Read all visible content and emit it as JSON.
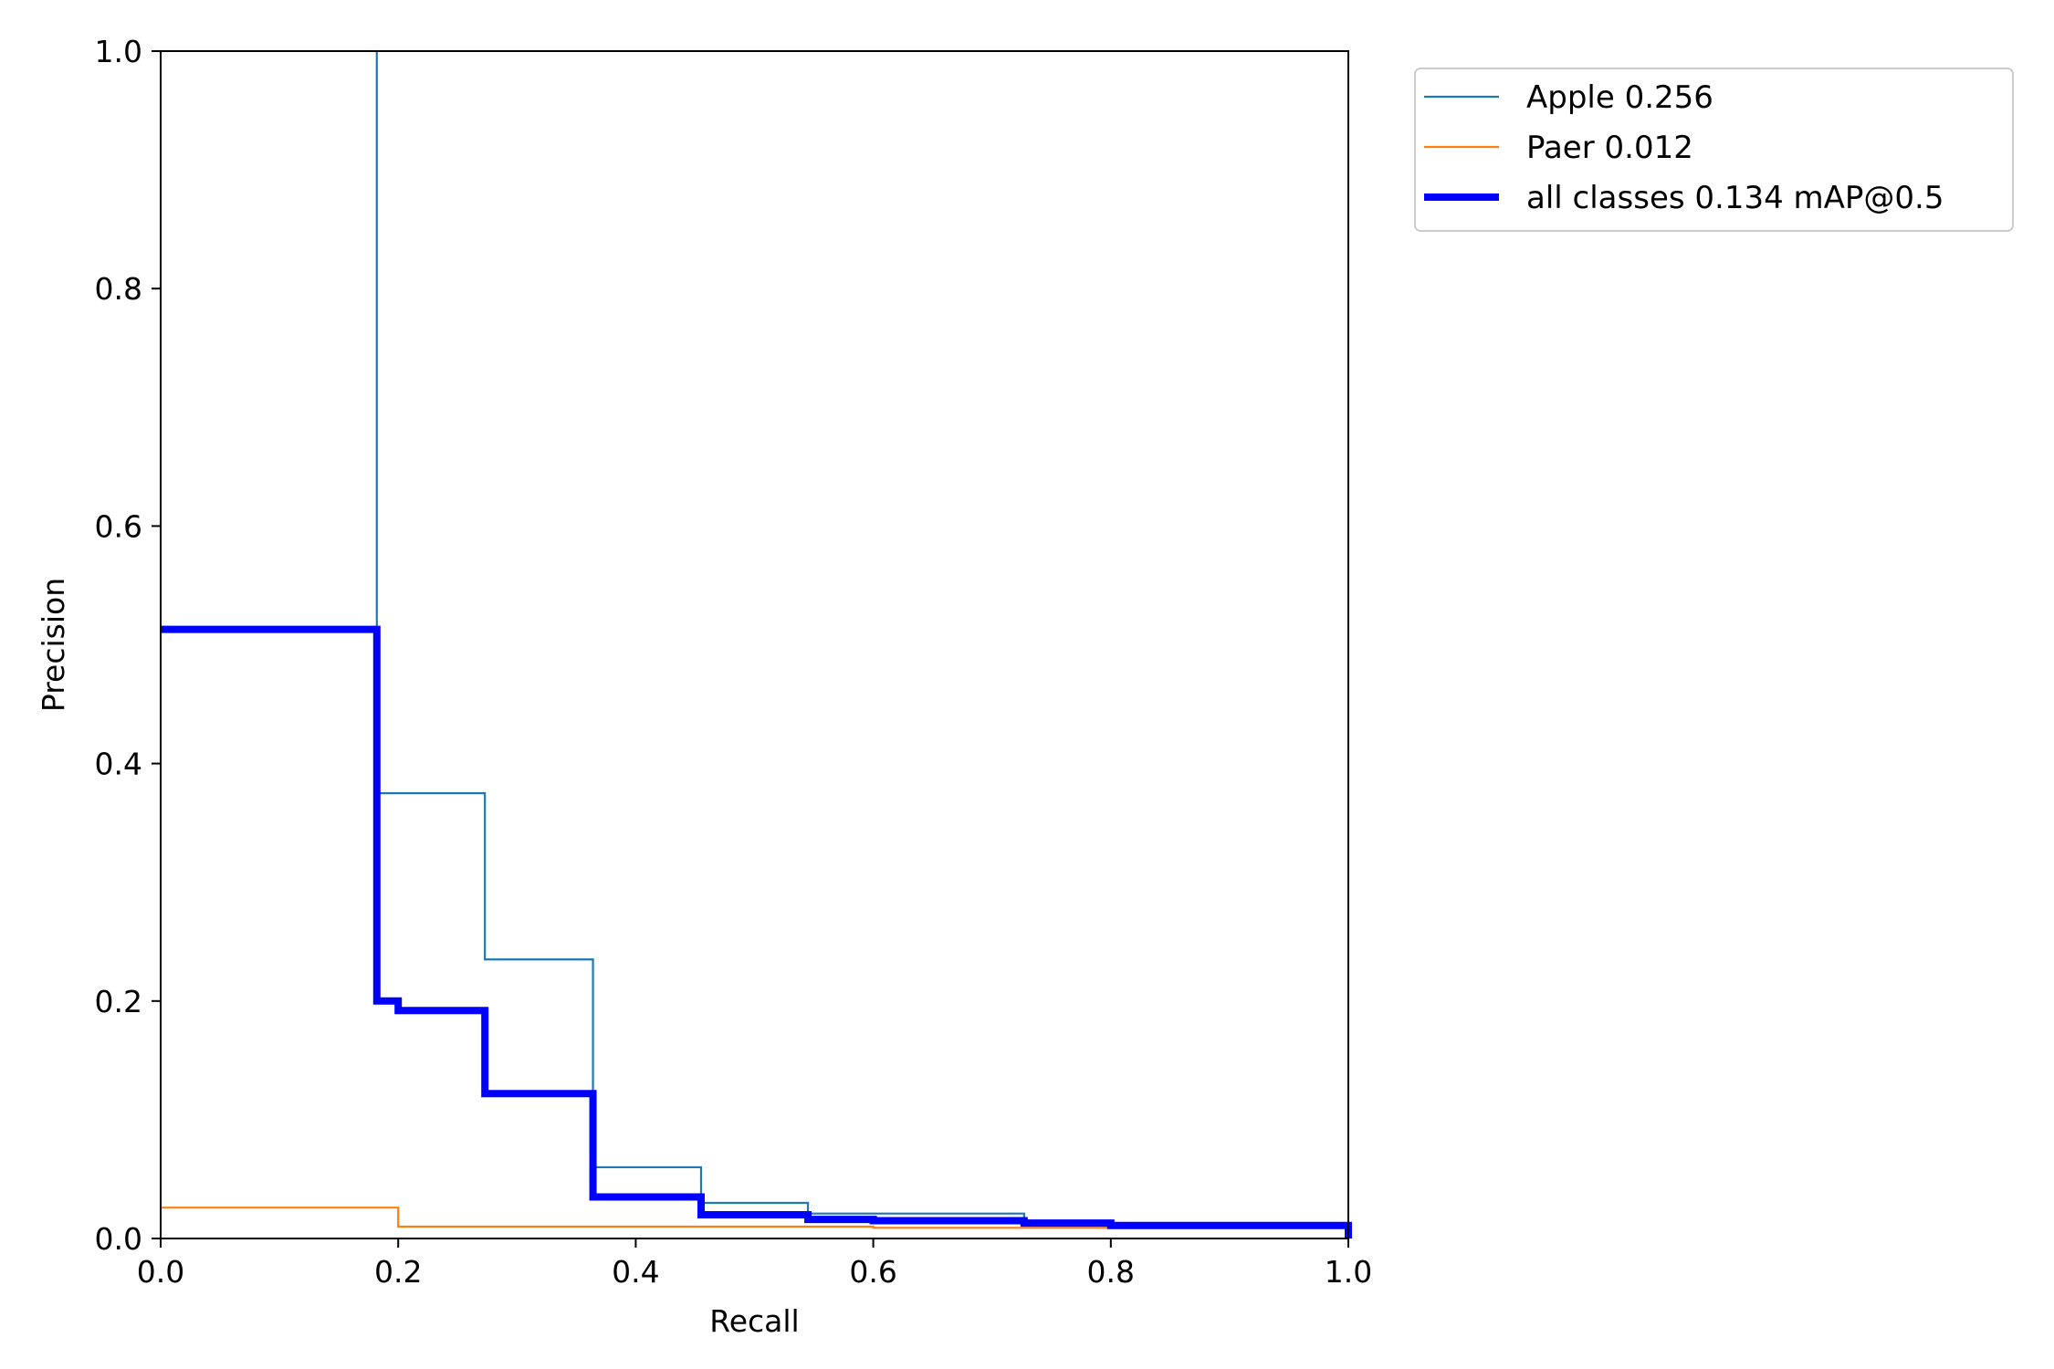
{
  "chart_data": {
    "type": "line",
    "title": "",
    "xlabel": "Recall",
    "ylabel": "Precision",
    "xlim": [
      0.0,
      1.0
    ],
    "ylim": [
      0.0,
      1.0
    ],
    "xticks": [
      "0.0",
      "0.2",
      "0.4",
      "0.6",
      "0.8",
      "1.0"
    ],
    "yticks": [
      "0.0",
      "0.2",
      "0.4",
      "0.6",
      "0.8",
      "1.0"
    ],
    "grid": false,
    "legend_position": "outside-top-right",
    "series": [
      {
        "name": "Apple 0.256",
        "color": "#1f77b4",
        "line": "thin",
        "x": [
          0.182,
          0.182,
          0.273,
          0.273,
          0.364,
          0.364,
          0.455,
          0.455,
          0.545,
          0.545,
          0.727,
          0.727,
          1.0
        ],
        "y": [
          1.0,
          0.375,
          0.375,
          0.235,
          0.235,
          0.06,
          0.06,
          0.03,
          0.03,
          0.021,
          0.021,
          0.013,
          0.013
        ]
      },
      {
        "name": "Paer 0.012",
        "color": "#ff7f0e",
        "line": "thin",
        "x": [
          0.0,
          0.2,
          0.2,
          0.6,
          0.6,
          1.0
        ],
        "y": [
          0.026,
          0.026,
          0.01,
          0.01,
          0.009,
          0.009
        ]
      },
      {
        "name": "all classes 0.134 mAP@0.5",
        "color": "#0000ff",
        "line": "thick",
        "x": [
          0.0,
          0.182,
          0.182,
          0.2,
          0.2,
          0.273,
          0.273,
          0.364,
          0.364,
          0.455,
          0.455,
          0.545,
          0.545,
          0.6,
          0.6,
          0.727,
          0.727,
          0.8,
          0.8,
          1.0,
          1.0
        ],
        "y": [
          0.513,
          0.513,
          0.2,
          0.2,
          0.192,
          0.192,
          0.122,
          0.122,
          0.035,
          0.035,
          0.02,
          0.02,
          0.016,
          0.016,
          0.015,
          0.015,
          0.013,
          0.013,
          0.011,
          0.011,
          0.0
        ]
      }
    ]
  }
}
